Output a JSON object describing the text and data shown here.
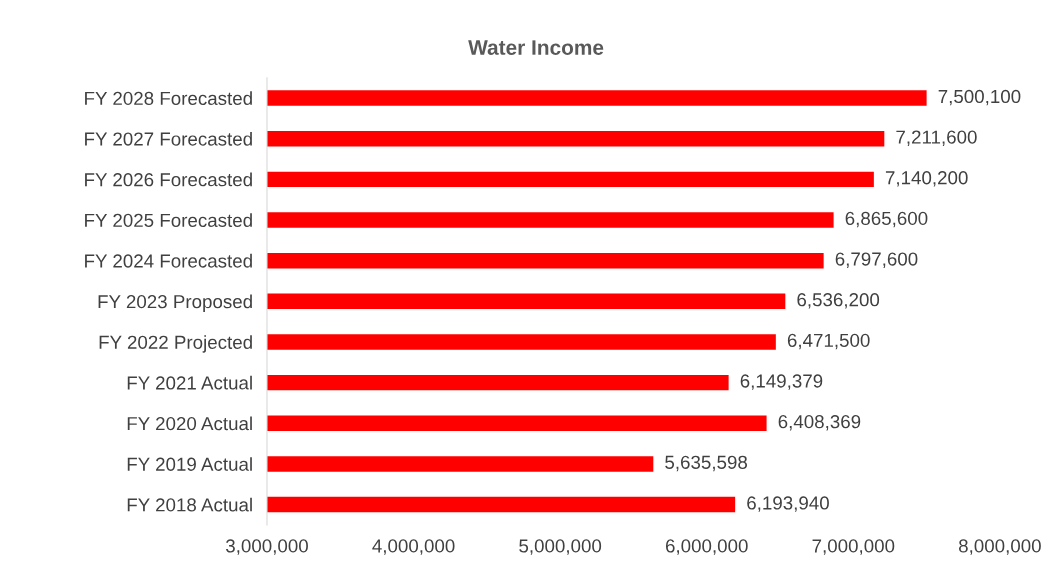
{
  "chart_data": {
    "type": "bar",
    "orientation": "horizontal",
    "title": "Water Income",
    "categories": [
      "FY 2028 Forecasted",
      "FY 2027 Forecasted",
      "FY 2026 Forecasted",
      "FY 2025 Forecasted",
      "FY 2024 Forecasted",
      "FY 2023 Proposed",
      "FY 2022 Projected",
      "FY 2021 Actual",
      "FY 2020 Actual",
      "FY 2019 Actual",
      "FY 2018 Actual"
    ],
    "values": [
      7500100,
      7211600,
      7140200,
      6865600,
      6797600,
      6536200,
      6471500,
      6149379,
      6408369,
      5635598,
      6193940
    ],
    "value_labels": [
      "7,500,100",
      "7,211,600",
      "7,140,200",
      "6,865,600",
      "6,797,600",
      "6,536,200",
      "6,471,500",
      "6,149,379",
      "6,408,369",
      "5,635,598",
      "6,193,940"
    ],
    "color": "#ff0000",
    "xlim": [
      3000000,
      8000000
    ],
    "xticks": [
      {
        "value": 3000000,
        "label": "3,000,000"
      },
      {
        "value": 4000000,
        "label": "4,000,000"
      },
      {
        "value": 5000000,
        "label": "5,000,000"
      },
      {
        "value": 6000000,
        "label": "6,000,000"
      },
      {
        "value": 7000000,
        "label": "7,000,000"
      },
      {
        "value": 8000000,
        "label": "8,000,000"
      }
    ],
    "grid": false
  }
}
